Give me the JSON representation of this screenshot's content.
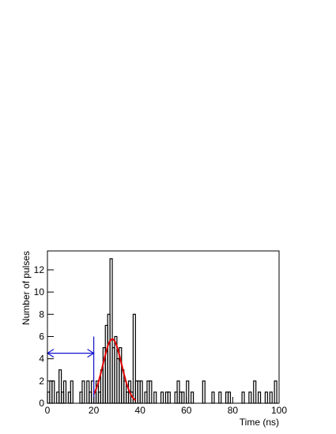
{
  "chart_data": {
    "type": "histogram",
    "x_label": "Time (ns)",
    "y_label": "Number of pulses",
    "bins": [
      0,
      1,
      2,
      3,
      4,
      5,
      6,
      7,
      8,
      9,
      10,
      11,
      12,
      13,
      14,
      15,
      16,
      17,
      18,
      19,
      20,
      21,
      22,
      23,
      24,
      25,
      26,
      27,
      28,
      29,
      30,
      31,
      32,
      33,
      34,
      35,
      36,
      37,
      38,
      39,
      40,
      41,
      42,
      43,
      44,
      45,
      46,
      47,
      48,
      49,
      50,
      51,
      52,
      53,
      54,
      55,
      56,
      57,
      58,
      59,
      60,
      61,
      62,
      63,
      64,
      65,
      66,
      67,
      68,
      69,
      70,
      71,
      72,
      73,
      74,
      75,
      76,
      77,
      78,
      79,
      80,
      81,
      82,
      83,
      84,
      85,
      86,
      87,
      88,
      89,
      90,
      91,
      92,
      93,
      94,
      95,
      96,
      97,
      98,
      99,
      100
    ],
    "counts": [
      1,
      2,
      2,
      0,
      1,
      3,
      1,
      2,
      0,
      1,
      2,
      0,
      0,
      0,
      1,
      2,
      0,
      2,
      1,
      2,
      1,
      2,
      1,
      3,
      5,
      7,
      8,
      13,
      5,
      6,
      4,
      5,
      3,
      2,
      1,
      2,
      1,
      8,
      2,
      2,
      2,
      0,
      1,
      2,
      2,
      0,
      1,
      0,
      0,
      1,
      0,
      1,
      1,
      0,
      0,
      1,
      2,
      1,
      1,
      0,
      2,
      0,
      1,
      0,
      0,
      0,
      0,
      2,
      0,
      0,
      0,
      1,
      0,
      0,
      1,
      0,
      0,
      1,
      1,
      0,
      0,
      0,
      0,
      0,
      1,
      0,
      0,
      1,
      0,
      2,
      0,
      1,
      0,
      0,
      1,
      0,
      1,
      0,
      2,
      0
    ],
    "color": "#000000",
    "fit": {
      "color": "#e00000",
      "x": [
        20,
        21,
        22,
        23,
        24,
        25,
        26,
        27,
        28,
        29,
        30,
        31,
        32,
        33,
        34,
        35,
        36,
        37,
        38
      ],
      "y": [
        0.78,
        1.26,
        1.88,
        2.66,
        3.52,
        4.38,
        5.12,
        5.62,
        5.8,
        5.62,
        5.12,
        4.38,
        3.52,
        2.66,
        1.88,
        1.26,
        0.78,
        0.46,
        0.25
      ]
    },
    "window": {
      "color": "#1010d0",
      "arrow_x": [
        0,
        20
      ],
      "arrow_y": 4.5,
      "line_x": 20,
      "line_y": [
        0,
        6
      ]
    },
    "xlim": [
      0,
      100
    ],
    "xticks": [
      0,
      20,
      40,
      60,
      80,
      100
    ],
    "ylim": [
      0,
      13.7
    ],
    "yticks": [
      0,
      2,
      4,
      6,
      8,
      10,
      12
    ]
  }
}
